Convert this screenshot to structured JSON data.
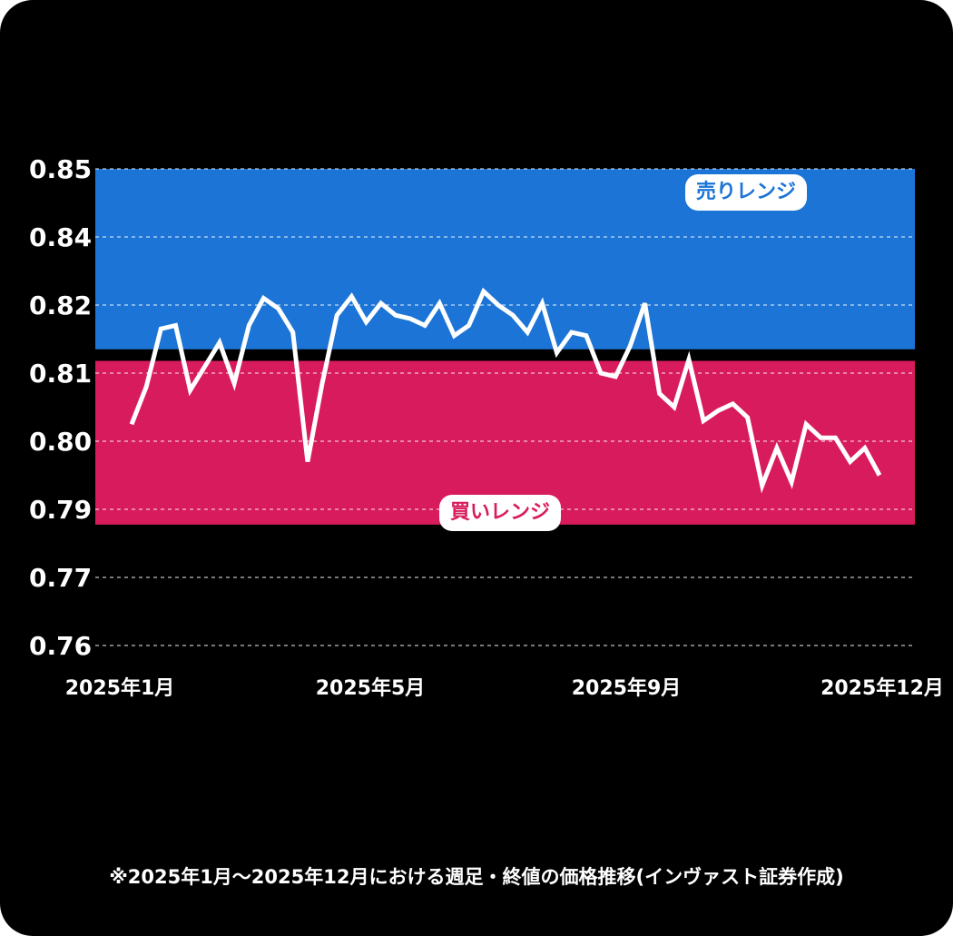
{
  "chart_data": {
    "type": "line",
    "y_ticks": [
      0.85,
      0.84,
      0.82,
      0.81,
      0.8,
      0.79,
      0.77,
      0.76
    ],
    "x_ticks": [
      "2025年1月",
      "2025年5月",
      "2025年9月",
      "2025年12月"
    ],
    "grid": true,
    "bands": [
      {
        "label": "売りレンジ",
        "color": "#1b74d6",
        "from": 0.8135,
        "to": 0.85
      },
      {
        "label": "買いレンジ",
        "color": "#d81b5c",
        "from": 0.7855,
        "to": 0.8118
      }
    ],
    "series": [
      {
        "color": "#ffffff",
        "values": [
          0.8025,
          0.808,
          0.8165,
          0.817,
          0.8075,
          0.811,
          0.8145,
          0.8085,
          0.817,
          0.822,
          0.8195,
          0.816,
          0.797,
          0.8085,
          0.8185,
          0.8225,
          0.8175,
          0.8205,
          0.8185,
          0.818,
          0.817,
          0.8205,
          0.8155,
          0.817,
          0.824,
          0.82,
          0.8185,
          0.816,
          0.8205,
          0.813,
          0.816,
          0.8155,
          0.81,
          0.8095,
          0.814,
          0.8205,
          0.807,
          0.805,
          0.812,
          0.803,
          0.8045,
          0.8055,
          0.8035,
          0.7935,
          0.799,
          0.794,
          0.8025,
          0.8005,
          0.8005,
          0.797,
          0.799,
          0.795
        ]
      }
    ]
  },
  "bands": {
    "sell_label": "売りレンジ",
    "buy_label": "買いレンジ"
  },
  "footnote": "※2025年1月～2025年12月における週足・終値の価格推移(インヴァスト証券作成)"
}
